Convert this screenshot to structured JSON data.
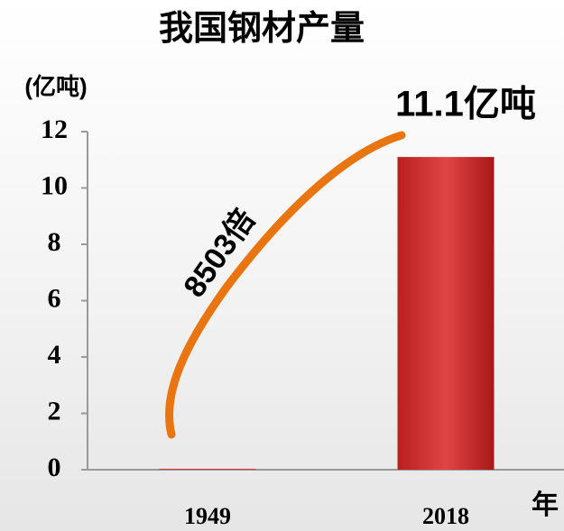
{
  "chart_data": {
    "type": "bar",
    "title": "我国钢材产量",
    "y_label": "(亿吨)",
    "x_label": "年",
    "categories": [
      "1949",
      "2018"
    ],
    "values": [
      0.0013,
      11.1
    ],
    "value_labels": [
      null,
      "11.1亿吨"
    ],
    "annotation": "8503倍",
    "color": "#d93a3a",
    "annotation_color": "#e87510",
    "ylim": [
      0,
      12
    ],
    "yticks": [
      0,
      2,
      4,
      6,
      8,
      10,
      12
    ],
    "grid": false
  }
}
